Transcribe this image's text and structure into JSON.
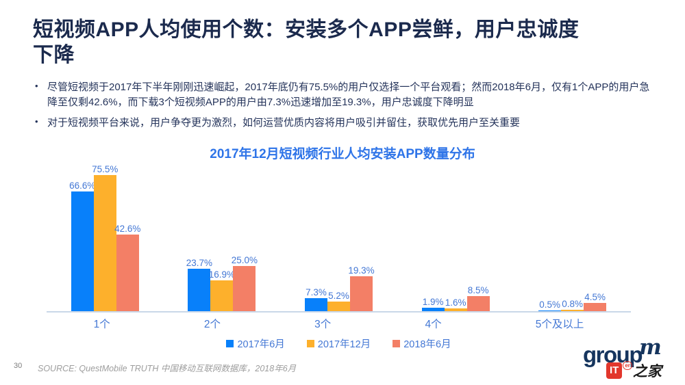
{
  "header": {
    "title_line1": "短视频APP人均使用个数：安装多个APP尝鲜，用户忠诚度",
    "title_line2": "下降"
  },
  "bullets": [
    "尽管短视频于2017年下半年刚刚迅速崛起，2017年底仍有75.5%的用户仅选择一个平台观看；然而2018年6月，仅有1个APP的用户急降至仅剩42.6%，而下载3个短视频APP的用户由7.3%迅速增加至19.3%，用户忠诚度下降明显",
    "对于短视频平台来说，用户争夺更为激烈，如何运营优质内容将用户吸引并留住，获取优先用户至关重要"
  ],
  "chart_data": {
    "type": "bar",
    "title": "2017年12月短视频行业人均安装APP数量分布",
    "categories": [
      "1个",
      "2个",
      "3个",
      "4个",
      "5个及以上"
    ],
    "series": [
      {
        "name": "2017年6月",
        "color": "#0880FA",
        "values": [
          66.6,
          23.7,
          7.3,
          1.9,
          0.5
        ],
        "labels": [
          "66.6%",
          "23.7%",
          "7.3%",
          "1.9%",
          "0.5%"
        ]
      },
      {
        "name": "2017年12月",
        "color": "#FDB02C",
        "values": [
          75.5,
          16.9,
          5.2,
          1.6,
          0.8
        ],
        "labels": [
          "75.5%",
          "16.9%",
          "5.2%",
          "1.6%",
          "0.8%"
        ]
      },
      {
        "name": "2018年6月",
        "color": "#F37F66",
        "values": [
          42.6,
          25.0,
          19.3,
          8.5,
          4.5
        ],
        "labels": [
          "42.6%",
          "25.0%",
          "19.3%",
          "8.5%",
          "4.5%"
        ]
      }
    ],
    "value_suffix": "%",
    "ylim": [
      0,
      80
    ],
    "grid": false,
    "legend_position": "bottom",
    "label_color": "#4377d4",
    "accent_title_color": "#2e74e8"
  },
  "footer": {
    "page_number": "30",
    "source": "SOURCE: QuestMobile TRUTH  中国移动互联网数据库，2018年6月"
  },
  "logo": {
    "brand": "group",
    "brand_m": "m",
    "watermark_it": "IT",
    "watermark_er": "er",
    "watermark_home": "之家"
  }
}
